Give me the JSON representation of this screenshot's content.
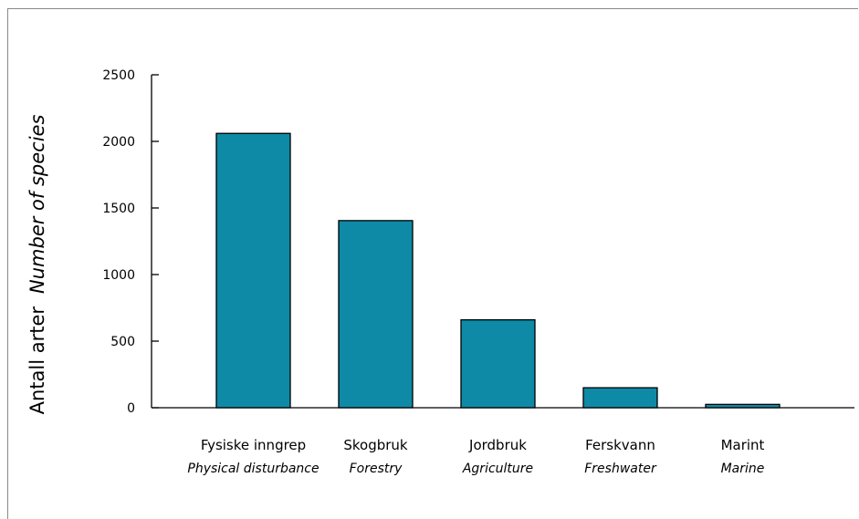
{
  "chart_data": {
    "type": "bar",
    "categories": [
      "Fysiske inngrep",
      "Skogbruk",
      "Jordbruk",
      "Ferskvann",
      "Marint"
    ],
    "categories_en": [
      "Physical disturbance",
      "Forestry",
      "Agriculture",
      "Freshwater",
      "Marine"
    ],
    "values": [
      2060,
      1405,
      660,
      150,
      25
    ],
    "ylabel": "Antall arter",
    "ylabel_en": "Number of species",
    "xlabel": "",
    "ylim": [
      0,
      2500
    ],
    "yticks": [
      0,
      500,
      1000,
      1500,
      2000,
      2500
    ],
    "ytick_labels": [
      "0",
      "500",
      "1000",
      "1500",
      "2000",
      "2500"
    ],
    "grid": false,
    "colors": {
      "bar_fill": "#0e8aa6",
      "bar_stroke": "#000000",
      "axis": "#000000",
      "frame": "#8a8a8a"
    }
  }
}
